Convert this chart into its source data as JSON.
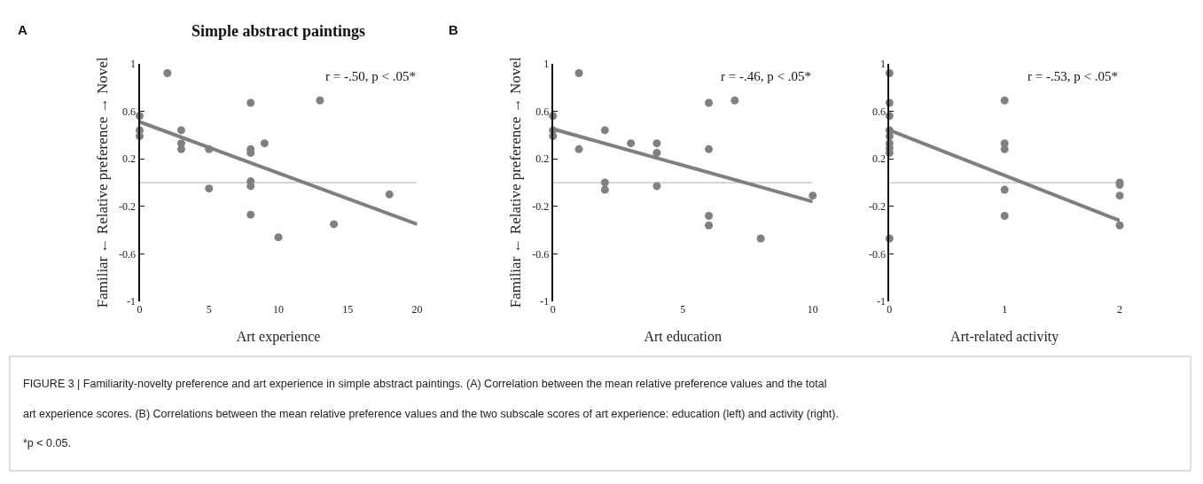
{
  "chart_data": [
    {
      "type": "scatter",
      "title": "Simple abstract paintings",
      "xlabel": "Art experience",
      "ylabel": "Familiar ← Relative preference → Novel",
      "xlim": [
        0,
        20
      ],
      "xticks": [
        0,
        5,
        10,
        15,
        20
      ],
      "ylim": [
        -1,
        1
      ],
      "yticks": [
        -1,
        -0.6,
        -0.2,
        0.2,
        0.6,
        1
      ],
      "grid": false,
      "series": [
        {
          "marker": "circle",
          "color": "#808080",
          "x": [
            0,
            0,
            0,
            2,
            3,
            3,
            3,
            5,
            5,
            8,
            8,
            8,
            8,
            8,
            8,
            9,
            10,
            13,
            14,
            18
          ],
          "values": [
            0.56,
            0.44,
            0.39,
            0.92,
            0.44,
            0.33,
            0.28,
            0.28,
            -0.05,
            0.67,
            0.28,
            0.25,
            0.01,
            -0.03,
            -0.27,
            0.33,
            -0.46,
            0.69,
            -0.35,
            -0.1
          ]
        },
        {
          "type": "line",
          "color": "#7f7f7f",
          "x": [
            0,
            20
          ],
          "values": [
            0.51,
            -0.35
          ]
        }
      ],
      "ref_lines": [
        {
          "axis": "y",
          "value": 0,
          "color": "#c8c8c8"
        }
      ],
      "annotations": [
        "A",
        "r = -.50, p < .05*",
        "FIGURE 3 | Familiarity-novelty preference and art experience in simple abstract paintings. (A) Correlation between the mean relative preference values and the total",
        "art experience scores. (B) Correlations between the mean relative preference values and the two subscale scores of art experience: education (left) and activity (right).",
        "*p < 0.05."
      ]
    },
    {
      "type": "scatter",
      "xlabel": "Art education",
      "ylabel": "Familiar ← Relative preference → Novel",
      "xlim": [
        0,
        10
      ],
      "xticks": [
        0,
        5,
        10
      ],
      "ylim": [
        -1,
        1
      ],
      "yticks": [
        -1,
        -0.6,
        -0.2,
        0.2,
        0.6,
        1
      ],
      "grid": false,
      "series": [
        {
          "marker": "circle",
          "color": "#808080",
          "x": [
            0,
            0,
            0,
            1,
            1,
            2,
            2,
            2,
            3,
            4,
            4,
            4,
            6,
            6,
            6,
            6,
            7,
            8,
            10
          ],
          "values": [
            0.56,
            0.44,
            0.39,
            0.92,
            0.28,
            0.44,
            0.0,
            -0.06,
            0.33,
            0.33,
            0.25,
            -0.03,
            0.67,
            0.28,
            -0.28,
            -0.36,
            0.69,
            -0.47,
            -0.11
          ]
        },
        {
          "type": "line",
          "color": "#7f7f7f",
          "x": [
            0,
            10
          ],
          "values": [
            0.45,
            -0.16
          ]
        }
      ],
      "ref_lines": [
        {
          "axis": "y",
          "value": 0,
          "color": "#c8c8c8"
        }
      ],
      "annotations": [
        "B",
        "r = -.46, p < .05*"
      ]
    },
    {
      "type": "scatter",
      "xlabel": "Art-related activity",
      "xlim": [
        0,
        2
      ],
      "xticks": [
        0,
        1,
        2
      ],
      "ylim": [
        -1,
        1
      ],
      "yticks": [
        -1,
        -0.6,
        -0.2,
        0.2,
        0.6,
        1
      ],
      "grid": false,
      "series": [
        {
          "marker": "circle",
          "color": "#808080",
          "x": [
            0,
            0,
            0,
            0,
            0,
            0,
            0,
            0,
            0,
            1,
            1,
            1,
            1,
            1,
            2,
            2,
            2,
            2
          ],
          "values": [
            0.92,
            0.67,
            0.56,
            0.44,
            0.39,
            0.33,
            0.29,
            0.25,
            -0.47,
            0.69,
            0.33,
            0.28,
            -0.06,
            -0.28,
            0.0,
            -0.02,
            -0.11,
            -0.36
          ]
        },
        {
          "type": "line",
          "color": "#7f7f7f",
          "x": [
            0,
            2
          ],
          "values": [
            0.44,
            -0.32
          ]
        }
      ],
      "ref_lines": [
        {
          "axis": "y",
          "value": 0,
          "color": "#c8c8c8"
        }
      ],
      "annotations": [
        "r = -.53, p < .05*"
      ]
    }
  ]
}
